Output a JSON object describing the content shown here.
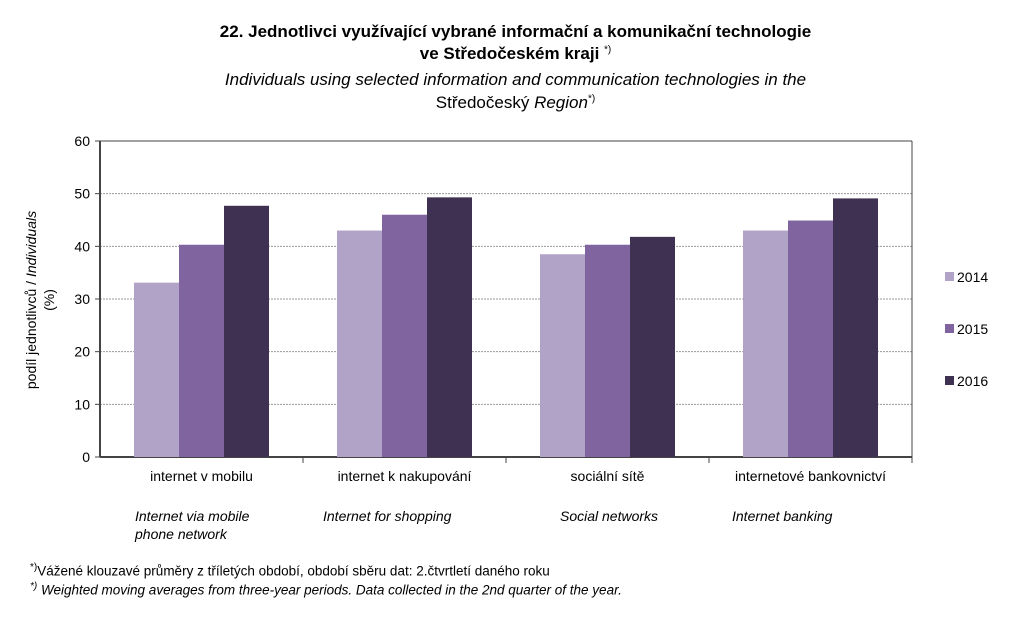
{
  "chart_data": {
    "type": "bar",
    "title": "22. Jednotlivci využívající vybrané informační a komunikační technologie",
    "title_line2": "ve Středočeském kraji",
    "title_marker": "*)",
    "subtitle": "Individuals using selected information and communication technologies in the",
    "subtitle_line2_plain": "Středočeský",
    "subtitle_line2_italic": "Region",
    "ylabel": "podíl jednotlivců / Individuals",
    "ylabel_unit": "(%)",
    "ylim": [
      0,
      60
    ],
    "yticks": [
      "0",
      "10",
      "20",
      "30",
      "40",
      "50",
      "60"
    ],
    "grid": true,
    "legend_position": "right",
    "categories": [
      "internet v mobilu",
      "internet k nakupování",
      "sociální sítě",
      "internetové bankovnictví"
    ],
    "categories_en": [
      [
        "Internet via mobile",
        "phone network"
      ],
      [
        "Internet for shopping"
      ],
      [
        "Social networks"
      ],
      [
        "Internet banking"
      ]
    ],
    "series": [
      {
        "name": "2014",
        "color": "#b1a3c8",
        "values": [
          33.1,
          43.0,
          38.5,
          43.0
        ]
      },
      {
        "name": "2015",
        "color": "#7f64a0",
        "values": [
          40.3,
          46.0,
          40.3,
          44.9
        ]
      },
      {
        "name": "2016",
        "color": "#3f3152",
        "values": [
          47.7,
          49.3,
          41.8,
          49.1
        ]
      }
    ]
  },
  "footnote": {
    "marker": "*)",
    "cz": "Vážené klouzavé  průměry z tříletých období, období sběru dat: 2.čtvrtletí daného roku",
    "en": "Weighted moving averages from three-year periods. Data collected in the 2nd quarter of the year."
  }
}
